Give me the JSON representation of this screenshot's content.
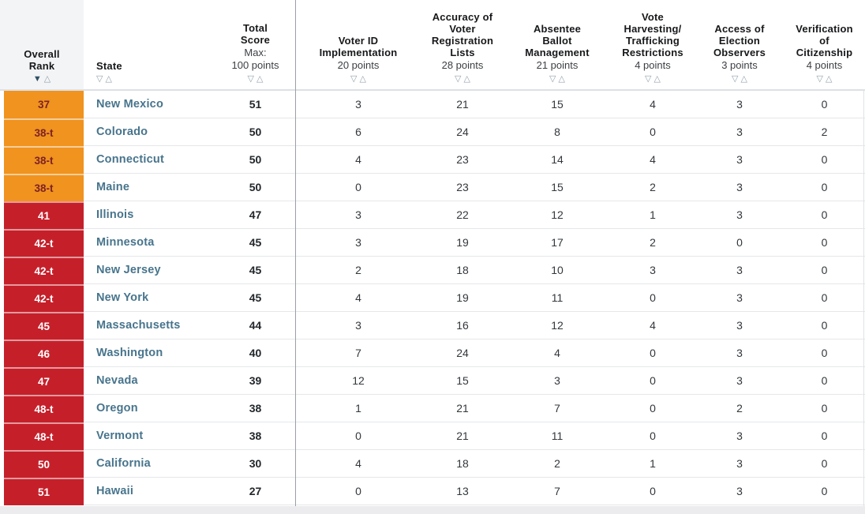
{
  "colors": {
    "tier_orange": "#f0931f",
    "tier_red": "#c5202a",
    "rank_text_on_orange": "#7d2125",
    "rank_text_on_red": "#ffffff",
    "state_link": "#47748c",
    "header_bg_rank": "#f3f4f6",
    "sort_active": "#2f5166",
    "sort_inactive": "#93a2ac"
  },
  "icons": {
    "sort_desc_filled": "▼",
    "sort_desc_outline": "▽",
    "sort_asc_outline": "△"
  },
  "table": {
    "columns": [
      {
        "id": "overall-rank",
        "title": "Overall\nRank"
      },
      {
        "id": "state",
        "title": "State"
      },
      {
        "id": "total-score",
        "title": "Total\nScore",
        "sub": "Max:\n100 points"
      },
      {
        "id": "voter-id",
        "title": "Voter ID\nImplementation",
        "points": "20 points"
      },
      {
        "id": "registration-accuracy",
        "title": "Accuracy of\nVoter\nRegistration\nLists",
        "points": "28 points"
      },
      {
        "id": "absentee-ballot",
        "title": "Absentee\nBallot\nManagement",
        "points": "21 points"
      },
      {
        "id": "vote-harvesting",
        "title": "Vote\nHarvesting/\nTrafficking\nRestrictions",
        "points": "4 points"
      },
      {
        "id": "election-observers",
        "title": "Access of\nElection\nObservers",
        "points": "3 points"
      },
      {
        "id": "citizenship-verification",
        "title": "Verification\nof\nCitizenship",
        "points": "4 points"
      }
    ],
    "rows": [
      {
        "rank": "37",
        "tier": "orange",
        "state": "New Mexico",
        "score": "51",
        "values": [
          3,
          21,
          15,
          4,
          3,
          0
        ]
      },
      {
        "rank": "38-t",
        "tier": "orange",
        "state": "Colorado",
        "score": "50",
        "values": [
          6,
          24,
          8,
          0,
          3,
          2
        ]
      },
      {
        "rank": "38-t",
        "tier": "orange",
        "state": "Connecticut",
        "score": "50",
        "values": [
          4,
          23,
          14,
          4,
          3,
          0
        ]
      },
      {
        "rank": "38-t",
        "tier": "orange",
        "state": "Maine",
        "score": "50",
        "values": [
          0,
          23,
          15,
          2,
          3,
          0
        ]
      },
      {
        "rank": "41",
        "tier": "red",
        "state": "Illinois",
        "score": "47",
        "values": [
          3,
          22,
          12,
          1,
          3,
          0
        ]
      },
      {
        "rank": "42-t",
        "tier": "red",
        "state": "Minnesota",
        "score": "45",
        "values": [
          3,
          19,
          17,
          2,
          0,
          0
        ]
      },
      {
        "rank": "42-t",
        "tier": "red",
        "state": "New Jersey",
        "score": "45",
        "values": [
          2,
          18,
          10,
          3,
          3,
          0
        ]
      },
      {
        "rank": "42-t",
        "tier": "red",
        "state": "New York",
        "score": "45",
        "values": [
          4,
          19,
          11,
          0,
          3,
          0
        ]
      },
      {
        "rank": "45",
        "tier": "red",
        "state": "Massachusetts",
        "score": "44",
        "values": [
          3,
          16,
          12,
          4,
          3,
          0
        ]
      },
      {
        "rank": "46",
        "tier": "red",
        "state": "Washington",
        "score": "40",
        "values": [
          7,
          24,
          4,
          0,
          3,
          0
        ]
      },
      {
        "rank": "47",
        "tier": "red",
        "state": "Nevada",
        "score": "39",
        "values": [
          12,
          15,
          3,
          0,
          3,
          0
        ]
      },
      {
        "rank": "48-t",
        "tier": "red",
        "state": "Oregon",
        "score": "38",
        "values": [
          1,
          21,
          7,
          0,
          2,
          0
        ]
      },
      {
        "rank": "48-t",
        "tier": "red",
        "state": "Vermont",
        "score": "38",
        "values": [
          0,
          21,
          11,
          0,
          3,
          0
        ]
      },
      {
        "rank": "50",
        "tier": "red",
        "state": "California",
        "score": "30",
        "values": [
          4,
          18,
          2,
          1,
          3,
          0
        ]
      },
      {
        "rank": "51",
        "tier": "red",
        "state": "Hawaii",
        "score": "27",
        "values": [
          0,
          13,
          7,
          0,
          3,
          0
        ]
      }
    ]
  }
}
